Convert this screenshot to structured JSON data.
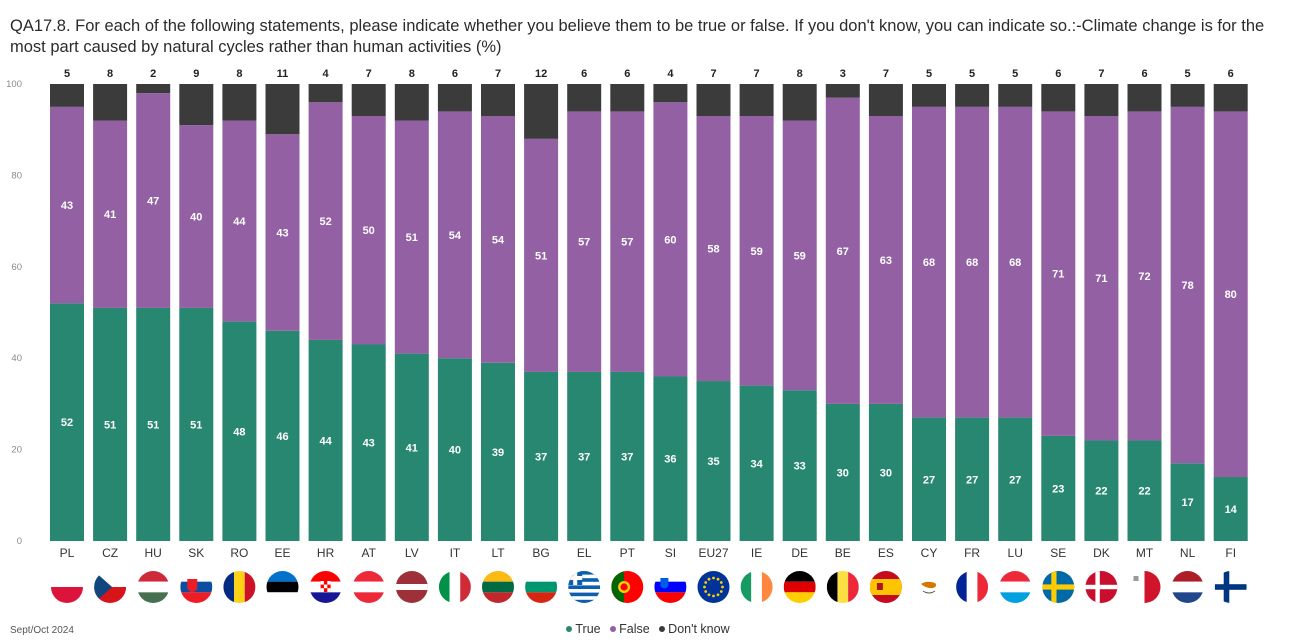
{
  "title": "QA17.8. For each of the following statements, please indicate whether you believe them to be true or false. If you don't know, you can indicate so.:-Climate change is for the most part caused by natural cycles rather than human activities (%)",
  "footer": {
    "date": "Sept/Oct 2024"
  },
  "colors": {
    "true": "#288770",
    "false": "#9260a3",
    "dontknow": "#3b3b3b"
  },
  "chart_data": {
    "type": "bar",
    "stacked": true,
    "title": "QA17.8. For each of the following statements, please indicate whether you believe them to be true or false. If you don't know, you can indicate so.:-Climate change is for the most part caused by natural cycles rather than human activities (%)",
    "categories": [
      "PL",
      "CZ",
      "HU",
      "SK",
      "RO",
      "EE",
      "HR",
      "AT",
      "LV",
      "IT",
      "LT",
      "BG",
      "EL",
      "PT",
      "SI",
      "EU27",
      "IE",
      "DE",
      "BE",
      "ES",
      "CY",
      "FR",
      "LU",
      "SE",
      "DK",
      "MT",
      "NL",
      "FI"
    ],
    "flags": [
      "flag-poland-icon",
      "flag-czechia-icon",
      "flag-hungary-icon",
      "flag-slovakia-icon",
      "flag-romania-icon",
      "flag-estonia-icon",
      "flag-croatia-icon",
      "flag-austria-icon",
      "flag-latvia-icon",
      "flag-italy-icon",
      "flag-lithuania-icon",
      "flag-bulgaria-icon",
      "flag-greece-icon",
      "flag-portugal-icon",
      "flag-slovenia-icon",
      "flag-eu-icon",
      "flag-ireland-icon",
      "flag-germany-icon",
      "flag-belgium-icon",
      "flag-spain-icon",
      "flag-cyprus-icon",
      "flag-france-icon",
      "flag-luxembourg-icon",
      "flag-sweden-icon",
      "flag-denmark-icon",
      "flag-malta-icon",
      "flag-netherlands-icon",
      "flag-finland-icon"
    ],
    "series": [
      {
        "name": "True",
        "values": [
          52,
          51,
          51,
          51,
          48,
          46,
          44,
          43,
          41,
          40,
          39,
          37,
          37,
          37,
          36,
          35,
          34,
          33,
          30,
          30,
          27,
          27,
          27,
          23,
          22,
          22,
          17,
          14
        ]
      },
      {
        "name": "False",
        "values": [
          43,
          41,
          47,
          40,
          44,
          43,
          52,
          50,
          51,
          54,
          54,
          51,
          57,
          57,
          60,
          58,
          59,
          59,
          67,
          63,
          68,
          68,
          68,
          71,
          71,
          72,
          78,
          80
        ]
      },
      {
        "name": "Don't know",
        "values": [
          5,
          8,
          2,
          9,
          8,
          11,
          4,
          7,
          8,
          6,
          7,
          12,
          6,
          6,
          4,
          7,
          7,
          8,
          3,
          7,
          5,
          5,
          5,
          6,
          7,
          6,
          5,
          6
        ]
      }
    ],
    "yticks": [
      0,
      20,
      40,
      60,
      80,
      100
    ],
    "ylim": [
      0,
      100
    ],
    "grid": false,
    "legend": "bottom-center"
  }
}
